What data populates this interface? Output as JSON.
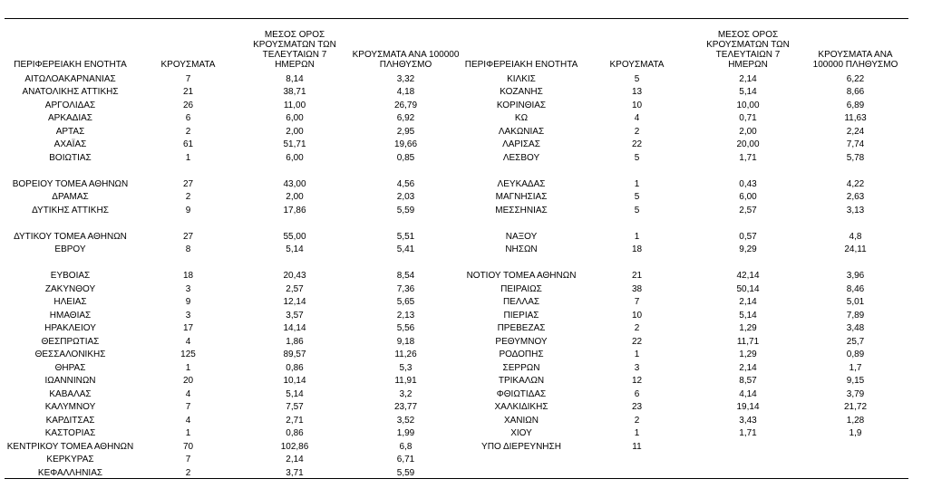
{
  "table": {
    "header": [
      "ΠΕΡΙΦΕΡΕΙΑΚΗ ΕΝΟΤΗΤΑ",
      "ΚΡΟΥΣΜΑΤΑ",
      "ΜΕΣΟΣ ΟΡΟΣ ΚΡΟΥΣΜΑΤΩΝ ΤΩΝ ΤΕΛΕΥΤΑΙΩΝ 7 ΗΜΕΡΩΝ",
      "ΚΡΟΥΣΜΑΤΑ ΑΝΑ 100000 ΠΛΗΘΥΣΜΟ",
      "ΠΕΡΙΦΕΡΕΙΑΚΗ ΕΝΟΤΗΤΑ",
      "ΚΡΟΥΣΜΑΤΑ",
      "ΜΕΣΟΣ ΟΡΟΣ ΚΡΟΥΣΜΑΤΩΝ ΤΩΝ ΤΕΛΕΥΤΑΙΩΝ 7 ΗΜΕΡΩΝ",
      "ΚΡΟΥΣΜΑΤΑ ΑΝΑ 100000 ΠΛΗΘΥΣΜΟ"
    ],
    "groups": [
      [
        [
          "ΑΙΤΩΛΟΑΚΑΡΝΑΝΙΑΣ",
          "7",
          "8,14",
          "3,32",
          "ΚΙΛΚΙΣ",
          "5",
          "2,14",
          "6,22"
        ],
        [
          "ΑΝΑΤΟΛΙΚΗΣ ΑΤΤΙΚΗΣ",
          "21",
          "38,71",
          "4,18",
          "ΚΟΖΑΝΗΣ",
          "13",
          "5,14",
          "8,66"
        ],
        [
          "ΑΡΓΟΛΙΔΑΣ",
          "26",
          "11,00",
          "26,79",
          "ΚΟΡΙΝΘΙΑΣ",
          "10",
          "10,00",
          "6,89"
        ],
        [
          "ΑΡΚΑΔΙΑΣ",
          "6",
          "6,00",
          "6,92",
          "ΚΩ",
          "4",
          "0,71",
          "11,63"
        ],
        [
          "ΑΡΤΑΣ",
          "2",
          "2,00",
          "2,95",
          "ΛΑΚΩΝΙΑΣ",
          "2",
          "2,00",
          "2,24"
        ],
        [
          "ΑΧΑΪΑΣ",
          "61",
          "51,71",
          "19,66",
          "ΛΑΡΙΣΑΣ",
          "22",
          "20,00",
          "7,74"
        ],
        [
          "ΒΟΙΩΤΙΑΣ",
          "1",
          "6,00",
          "0,85",
          "ΛΕΣΒΟΥ",
          "5",
          "1,71",
          "5,78"
        ]
      ],
      [
        [
          "ΒΟΡΕΙΟΥ ΤΟΜΕΑ ΑΘΗΝΩΝ",
          "27",
          "43,00",
          "4,56",
          "ΛΕΥΚΑΔΑΣ",
          "1",
          "0,43",
          "4,22"
        ],
        [
          "ΔΡΑΜΑΣ",
          "2",
          "2,00",
          "2,03",
          "ΜΑΓΝΗΣΙΑΣ",
          "5",
          "6,00",
          "2,63"
        ],
        [
          "ΔΥΤΙΚΗΣ ΑΤΤΙΚΗΣ",
          "9",
          "17,86",
          "5,59",
          "ΜΕΣΣΗΝΙΑΣ",
          "5",
          "2,57",
          "3,13"
        ]
      ],
      [
        [
          "ΔΥΤΙΚΟΥ ΤΟΜΕΑ ΑΘΗΝΩΝ",
          "27",
          "55,00",
          "5,51",
          "ΝΑΞΟΥ",
          "1",
          "0,57",
          "4,8"
        ],
        [
          "ΕΒΡΟΥ",
          "8",
          "5,14",
          "5,41",
          "ΝΗΣΩΝ",
          "18",
          "9,29",
          "24,11"
        ]
      ],
      [
        [
          "ΕΥΒΟΙΑΣ",
          "18",
          "20,43",
          "8,54",
          "ΝΟΤΙΟΥ ΤΟΜΕΑ ΑΘΗΝΩΝ",
          "21",
          "42,14",
          "3,96"
        ],
        [
          "ΖΑΚΥΝΘΟΥ",
          "3",
          "2,57",
          "7,36",
          "ΠΕΙΡΑΙΩΣ",
          "38",
          "50,14",
          "8,46"
        ],
        [
          "ΗΛΕΙΑΣ",
          "9",
          "12,14",
          "5,65",
          "ΠΕΛΛΑΣ",
          "7",
          "2,14",
          "5,01"
        ],
        [
          "ΗΜΑΘΙΑΣ",
          "3",
          "3,57",
          "2,13",
          "ΠΙΕΡΙΑΣ",
          "10",
          "5,14",
          "7,89"
        ],
        [
          "ΗΡΑΚΛΕΙΟΥ",
          "17",
          "14,14",
          "5,56",
          "ΠΡΕΒΕΖΑΣ",
          "2",
          "1,29",
          "3,48"
        ],
        [
          "ΘΕΣΠΡΩΤΙΑΣ",
          "4",
          "1,86",
          "9,18",
          "ΡΕΘΥΜΝΟΥ",
          "22",
          "11,71",
          "25,7"
        ],
        [
          "ΘΕΣΣΑΛΟΝΙΚΗΣ",
          "125",
          "89,57",
          "11,26",
          "ΡΟΔΟΠΗΣ",
          "1",
          "1,29",
          "0,89"
        ],
        [
          "ΘΗΡΑΣ",
          "1",
          "0,86",
          "5,3",
          "ΣΕΡΡΩΝ",
          "3",
          "2,14",
          "1,7"
        ],
        [
          "ΙΩΑΝΝΙΝΩΝ",
          "20",
          "10,14",
          "11,91",
          "ΤΡΙΚΑΛΩΝ",
          "12",
          "8,57",
          "9,15"
        ],
        [
          "ΚΑΒΑΛΑΣ",
          "4",
          "5,14",
          "3,2",
          "ΦΘΙΩΤΙΔΑΣ",
          "6",
          "4,14",
          "3,79"
        ],
        [
          "ΚΑΛΥΜΝΟΥ",
          "7",
          "7,57",
          "23,77",
          "ΧΑΛΚΙΔΙΚΗΣ",
          "23",
          "19,14",
          "21,72"
        ],
        [
          "ΚΑΡΔΙΤΣΑΣ",
          "4",
          "2,71",
          "3,52",
          "ΧΑΝΙΩΝ",
          "2",
          "3,43",
          "1,28"
        ],
        [
          "ΚΑΣΤΟΡΙΑΣ",
          "1",
          "0,86",
          "1,99",
          "ΧΙΟΥ",
          "1",
          "1,71",
          "1,9"
        ],
        [
          "ΚΕΝΤΡΙΚΟΥ ΤΟΜΕΑ ΑΘΗΝΩΝ",
          "70",
          "102,86",
          "6,8",
          "ΥΠΟ ΔΙΕΡΕΥΝΗΣΗ",
          "11",
          null,
          null
        ],
        [
          "ΚΕΡΚΥΡΑΣ",
          "7",
          "2,14",
          "6,71",
          null,
          null,
          null,
          null
        ],
        [
          "ΚΕΦΑΛΛΗΝΙΑΣ",
          "2",
          "3,71",
          "5,59",
          null,
          null,
          null,
          null
        ]
      ]
    ]
  }
}
